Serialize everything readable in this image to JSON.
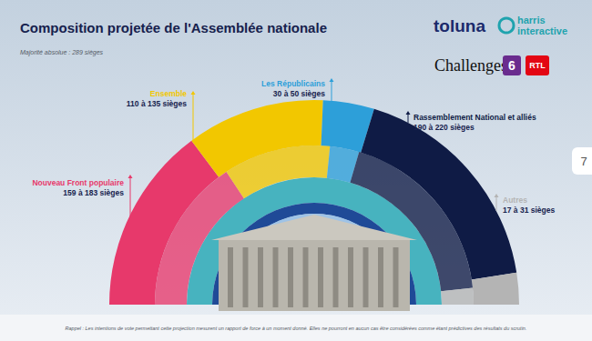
{
  "chart_data": {
    "type": "pie",
    "title": "Composition projetée de l'Assemblée nationale",
    "subtitle": "Majorité absolue : 289 sièges",
    "categories": [
      "Nouveau Front populaire",
      "Ensemble",
      "Les Républicains",
      "Rassemblement National et alliés",
      "Autres"
    ],
    "low": [
      159,
      110,
      30,
      190,
      17
    ],
    "high": [
      183,
      135,
      50,
      220,
      31
    ],
    "value_labels": [
      "159 à 183 sièges",
      "110 à 135 sièges",
      "30 à 50 sièges",
      "190 à 220 sièges",
      "17 à 31 sièges"
    ],
    "colors": [
      "#e7396b",
      "#f2c700",
      "#2d9fd9",
      "#0f1b45",
      "#b4b4b4"
    ],
    "data_labels": true
  },
  "logos": [
    "toluna",
    "harris",
    "interactive",
    "Challenges",
    "6",
    "RTL"
  ],
  "page": "7",
  "note": "Rappel : Les intentions de vote permettant cette projection mesurent un rapport de force à un moment donné. Elles ne pourront en aucun cas être considérées comme étant prédictives des résultats du scrutin."
}
